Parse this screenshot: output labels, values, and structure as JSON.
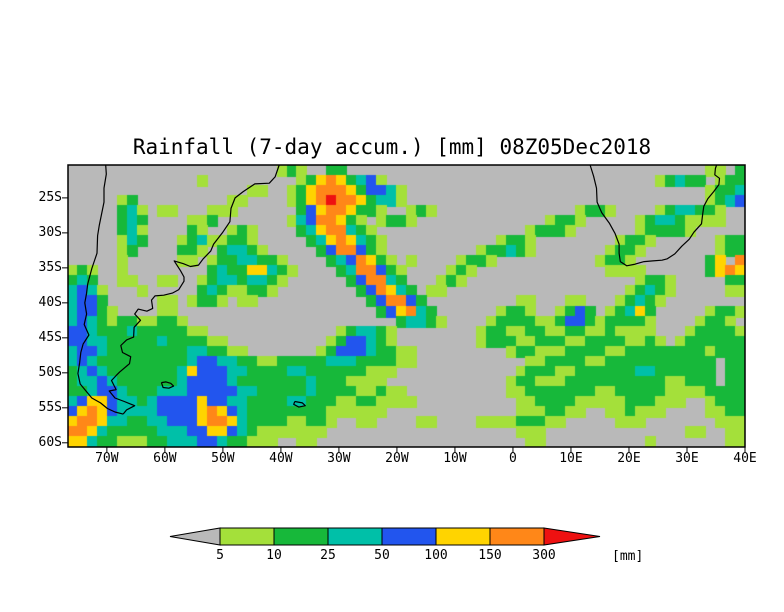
{
  "title": "Rainfall (7-day accum.) [mm] 08Z05Dec2018",
  "colorbar": {
    "tick_labels": [
      "5",
      "10",
      "25",
      "50",
      "100",
      "150",
      "300"
    ],
    "units_label": "[mm]"
  },
  "chart_data": {
    "type": "heatmap",
    "title": "Rainfall (7-day accum.) [mm] 08Z05Dec2018",
    "variable": "7-day accumulated rainfall",
    "units": "mm",
    "valid_time": "08Z05Dec2018",
    "lon_range": [
      -76.7,
      40.0
    ],
    "lat_range": [
      -60.6,
      -20.3
    ],
    "x_ticks": [
      {
        "label": "70W",
        "lon": -70
      },
      {
        "label": "60W",
        "lon": -60
      },
      {
        "label": "50W",
        "lon": -50
      },
      {
        "label": "40W",
        "lon": -40
      },
      {
        "label": "30W",
        "lon": -30
      },
      {
        "label": "20W",
        "lon": -20
      },
      {
        "label": "10W",
        "lon": -10
      },
      {
        "label": "0",
        "lon": 0
      },
      {
        "label": "10E",
        "lon": 10
      },
      {
        "label": "20E",
        "lon": 20
      },
      {
        "label": "30E",
        "lon": 30
      },
      {
        "label": "40E",
        "lon": 40
      }
    ],
    "y_ticks": [
      {
        "label": "25S",
        "lat": -25
      },
      {
        "label": "30S",
        "lat": -30
      },
      {
        "label": "35S",
        "lat": -35
      },
      {
        "label": "40S",
        "lat": -40
      },
      {
        "label": "45S",
        "lat": -45
      },
      {
        "label": "50S",
        "lat": -50
      },
      {
        "label": "55S",
        "lat": -55
      },
      {
        "label": "60S",
        "lat": -60
      }
    ],
    "levels_mm": [
      5,
      10,
      25,
      50,
      100,
      150,
      300
    ],
    "palette": [
      {
        "range": "<5",
        "color": "#b9b9b9"
      },
      {
        "range": "5-10",
        "color": "#a4e03a"
      },
      {
        "range": "10-25",
        "color": "#17b83a"
      },
      {
        "range": "25-50",
        "color": "#00c0a8"
      },
      {
        "range": "50-100",
        "color": "#2255ee"
      },
      {
        "range": "100-150",
        "color": "#ffd400"
      },
      {
        "range": "150-300",
        "color": "#ff8718"
      },
      {
        "range": ">300",
        "color": "#ee1111"
      }
    ],
    "grid": {
      "cols": 68,
      "rows": 28,
      "encoding": "each char is a rainfall class: 0=<5mm 1=5-10 2=10-25 3=25-50 4=50-100 5=100-150 6=150-300 7=>300",
      "rows_data": [
        "000000000000000000000121002200000000000000000000000000000000000011022122",
        "00000000000001000000000125652341000000000000000000000000000123220122",
        "00000000000000000011001256665244310000000000000000000000000000001223221022",
        "00000120000000001100001256766523310000000000000000000000000000001234322122",
        "0000023101100011100000024566522100121000000000000001221000012332210 11",
        "00000232000011200000001346652101221000000000000012210000012332111100",
        "00000231000021001210000235663210000000000000001222100000012222100 0000",
        "00000132000123112210000023565321000000000001221000000001221000000122",
        "000001200002210233210000024664210000000001223210000000122100000 01225",
        "000001000001101223322100002346521010000122100000000001221000000025 66",
        "12100100000000232255321000023664210000121000000000000011110000002565",
        "2320011001100123323321000000246632000121000000000000000001221000 0221",
        "34310001000002321122100000000246532011000000000000000000123210000011",
        "34420000011012210110000000000024664200000000011000110001232100000000",
        "34421000011000000000000000000002456320000001221001242012352000001221",
        "34321221122100000000000000000000023321000012222112442122221000012210",
        "44322232222211000000000000012332100000000122112211221121111000122221",
        "44332222232222110000000000124432100000000122211222112222112101222222",
        "34432222222233221100000001244432211000000000122111222211222222221222",
        "34322222222234433221122222333222211000000000001122221122222222222 22",
        "23432222222354443322223322222211100000000000012221122222233222222 22",
        "23343222222344443222222232221111000000000000122111222222222211222 22",
        "22344322233344444332222232222112110000000000112222222112222211112222",
        "34554332344445443322223322211221111000000000011222211111222111001222",
        "45654333344445654322222222111111000000000000011122110011211100001122",
        "56653322334445665322221122100110000110000111122211000001110000000111",
        "66532222233344554321111111000000000000000000011100000000000000110011",
        "55322111223334432211100110000000000000000000001100000000001000000011"
      ]
    },
    "coastlines": [
      {
        "name": "south-america-east",
        "points": [
          [
            -40.3,
            -20.3
          ],
          [
            -41.0,
            -22.0
          ],
          [
            -42.0,
            -22.9
          ],
          [
            -44.5,
            -23.0
          ],
          [
            -46.5,
            -24.1
          ],
          [
            -47.9,
            -25.0
          ],
          [
            -48.6,
            -26.5
          ],
          [
            -48.8,
            -28.4
          ],
          [
            -50.1,
            -30.0
          ],
          [
            -51.6,
            -31.6
          ],
          [
            -52.1,
            -32.6
          ],
          [
            -53.4,
            -33.7
          ],
          [
            -54.2,
            -34.6
          ],
          [
            -55.6,
            -34.8
          ],
          [
            -56.8,
            -34.4
          ],
          [
            -58.4,
            -34.0
          ],
          [
            -57.3,
            -35.4
          ],
          [
            -56.7,
            -36.3
          ],
          [
            -56.7,
            -36.9
          ],
          [
            -57.6,
            -38.1
          ],
          [
            -58.7,
            -38.6
          ],
          [
            -60.2,
            -38.9
          ],
          [
            -61.7,
            -39.0
          ],
          [
            -62.3,
            -39.6
          ],
          [
            -62.1,
            -40.8
          ],
          [
            -63.1,
            -41.2
          ],
          [
            -64.6,
            -40.9
          ],
          [
            -65.2,
            -41.6
          ],
          [
            -64.2,
            -42.5
          ],
          [
            -65.3,
            -43.5
          ],
          [
            -65.4,
            -44.9
          ],
          [
            -66.6,
            -45.3
          ],
          [
            -67.6,
            -46.1
          ],
          [
            -67.3,
            -47.1
          ],
          [
            -65.9,
            -47.7
          ],
          [
            -66.1,
            -48.7
          ],
          [
            -67.8,
            -49.9
          ],
          [
            -68.4,
            -50.4
          ],
          [
            -69.2,
            -51.1
          ],
          [
            -68.4,
            -52.4
          ],
          [
            -69.6,
            -52.6
          ],
          [
            -68.6,
            -53.6
          ],
          [
            -67.0,
            -54.1
          ],
          [
            -65.2,
            -54.7
          ],
          [
            -66.6,
            -55.3
          ],
          [
            -67.2,
            -55.9
          ]
        ]
      },
      {
        "name": "south-america-west",
        "points": [
          [
            -70.2,
            -20.3
          ],
          [
            -70.1,
            -21.6
          ],
          [
            -70.5,
            -23.6
          ],
          [
            -70.5,
            -25.6
          ],
          [
            -71.3,
            -28.9
          ],
          [
            -71.6,
            -30.4
          ],
          [
            -71.7,
            -32.9
          ],
          [
            -72.6,
            -35.1
          ],
          [
            -73.3,
            -37.3
          ],
          [
            -73.5,
            -38.6
          ],
          [
            -73.8,
            -40.0
          ],
          [
            -73.5,
            -41.6
          ],
          [
            -73.9,
            -43.1
          ],
          [
            -73.1,
            -44.6
          ],
          [
            -74.1,
            -45.9
          ],
          [
            -74.5,
            -47.1
          ],
          [
            -74.7,
            -48.6
          ],
          [
            -75.0,
            -50.1
          ],
          [
            -74.6,
            -51.6
          ],
          [
            -73.6,
            -52.6
          ],
          [
            -72.6,
            -53.6
          ],
          [
            -71.1,
            -54.3
          ],
          [
            -69.9,
            -55.1
          ],
          [
            -68.6,
            -55.6
          ],
          [
            -67.2,
            -55.9
          ]
        ]
      },
      {
        "name": "falkland-islands",
        "points": [
          [
            -60.6,
            -51.4
          ],
          [
            -59.8,
            -51.3
          ],
          [
            -59.0,
            -51.5
          ],
          [
            -58.5,
            -51.9
          ],
          [
            -59.3,
            -52.2
          ],
          [
            -60.3,
            -52.1
          ],
          [
            -60.6,
            -51.4
          ]
        ]
      },
      {
        "name": "south-georgia",
        "points": [
          [
            -37.6,
            -54.1
          ],
          [
            -36.3,
            -54.3
          ],
          [
            -35.8,
            -54.7
          ],
          [
            -36.9,
            -54.9
          ],
          [
            -37.8,
            -54.5
          ],
          [
            -37.6,
            -54.1
          ]
        ]
      },
      {
        "name": "africa",
        "points": [
          [
            13.3,
            -20.3
          ],
          [
            13.9,
            -21.9
          ],
          [
            14.4,
            -23.6
          ],
          [
            14.5,
            -25.6
          ],
          [
            15.3,
            -27.1
          ],
          [
            16.6,
            -28.6
          ],
          [
            17.6,
            -30.1
          ],
          [
            18.3,
            -31.6
          ],
          [
            18.3,
            -32.9
          ],
          [
            18.5,
            -34.1
          ],
          [
            19.6,
            -34.7
          ],
          [
            20.9,
            -34.5
          ],
          [
            22.6,
            -34.1
          ],
          [
            24.1,
            -34.0
          ],
          [
            25.7,
            -33.9
          ],
          [
            26.6,
            -33.7
          ],
          [
            27.9,
            -33.0
          ],
          [
            29.1,
            -31.9
          ],
          [
            30.4,
            -30.9
          ],
          [
            31.2,
            -29.9
          ],
          [
            32.5,
            -28.7
          ],
          [
            32.7,
            -27.3
          ],
          [
            32.9,
            -26.2
          ],
          [
            33.6,
            -25.1
          ],
          [
            34.6,
            -24.1
          ],
          [
            35.5,
            -23.1
          ],
          [
            35.6,
            -22.2
          ],
          [
            34.8,
            -21.7
          ],
          [
            34.9,
            -20.8
          ],
          [
            35.1,
            -20.3
          ]
        ]
      }
    ]
  }
}
